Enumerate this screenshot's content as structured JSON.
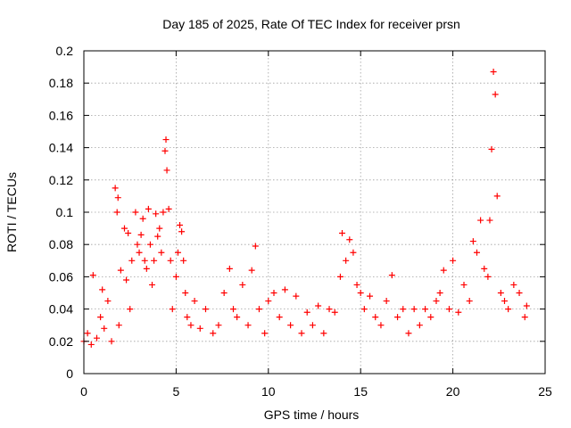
{
  "chart_data": {
    "type": "scatter",
    "title": "Day 185 of 2025, Rate Of TEC Index for receiver prsn",
    "xlabel": "GPS time / hours",
    "ylabel": "ROTI / TECUs",
    "xlim": [
      0,
      25
    ],
    "ylim": [
      0,
      0.2
    ],
    "x_ticks": [
      0,
      5,
      10,
      15,
      20,
      25
    ],
    "y_ticks": [
      0,
      0.02,
      0.04,
      0.06,
      0.08,
      0.1,
      0.12,
      0.14,
      0.16,
      0.18,
      0.2
    ],
    "x_tick_labels": [
      "0",
      "5",
      "10",
      "15",
      "20",
      "25"
    ],
    "y_tick_labels": [
      "0",
      "0.02",
      "0.04",
      "0.06",
      "0.08",
      "0.1",
      "0.12",
      "0.14",
      "0.16",
      "0.18",
      "0.2"
    ],
    "grid": true,
    "marker": "+",
    "color": "#ff0000",
    "series": [
      {
        "name": "ROTI",
        "x": [
          0.0,
          0.2,
          0.4,
          0.5,
          0.7,
          0.9,
          1.0,
          1.1,
          1.3,
          1.5,
          1.7,
          1.8,
          1.85,
          1.9,
          2.0,
          2.2,
          2.3,
          2.4,
          2.5,
          2.6,
          2.8,
          2.9,
          3.0,
          3.1,
          3.2,
          3.3,
          3.4,
          3.5,
          3.6,
          3.7,
          3.8,
          3.9,
          4.0,
          4.1,
          4.2,
          4.3,
          4.4,
          4.45,
          4.5,
          4.6,
          4.7,
          4.8,
          5.0,
          5.1,
          5.2,
          5.3,
          5.4,
          5.5,
          5.6,
          5.8,
          6.0,
          6.3,
          6.6,
          7.0,
          7.3,
          7.6,
          7.9,
          8.1,
          8.3,
          8.6,
          8.9,
          9.1,
          9.3,
          9.5,
          9.8,
          10.0,
          10.3,
          10.6,
          10.9,
          11.2,
          11.5,
          11.8,
          12.1,
          12.4,
          12.7,
          13.0,
          13.3,
          13.6,
          13.9,
          14.0,
          14.2,
          14.4,
          14.6,
          14.8,
          15.0,
          15.2,
          15.5,
          15.8,
          16.1,
          16.4,
          16.7,
          17.0,
          17.3,
          17.6,
          17.9,
          18.2,
          18.5,
          18.8,
          19.1,
          19.3,
          19.5,
          19.8,
          20.0,
          20.3,
          20.6,
          20.9,
          21.1,
          21.3,
          21.5,
          21.7,
          21.9,
          22.0,
          22.1,
          22.2,
          22.3,
          22.4,
          22.6,
          22.8,
          23.0,
          23.3,
          23.6,
          23.9,
          24.0
        ],
        "y": [
          0.02,
          0.025,
          0.018,
          0.061,
          0.022,
          0.035,
          0.052,
          0.028,
          0.045,
          0.02,
          0.115,
          0.1,
          0.109,
          0.03,
          0.064,
          0.09,
          0.058,
          0.087,
          0.04,
          0.07,
          0.1,
          0.08,
          0.075,
          0.086,
          0.096,
          0.07,
          0.065,
          0.102,
          0.08,
          0.055,
          0.07,
          0.099,
          0.085,
          0.09,
          0.075,
          0.1,
          0.138,
          0.145,
          0.126,
          0.102,
          0.07,
          0.04,
          0.06,
          0.075,
          0.092,
          0.088,
          0.07,
          0.05,
          0.035,
          0.03,
          0.045,
          0.028,
          0.04,
          0.025,
          0.03,
          0.05,
          0.065,
          0.04,
          0.035,
          0.055,
          0.03,
          0.064,
          0.079,
          0.04,
          0.025,
          0.045,
          0.05,
          0.035,
          0.052,
          0.03,
          0.048,
          0.025,
          0.038,
          0.03,
          0.042,
          0.025,
          0.04,
          0.038,
          0.06,
          0.087,
          0.07,
          0.083,
          0.075,
          0.055,
          0.05,
          0.04,
          0.048,
          0.035,
          0.03,
          0.045,
          0.061,
          0.035,
          0.04,
          0.025,
          0.04,
          0.03,
          0.04,
          0.035,
          0.045,
          0.05,
          0.064,
          0.04,
          0.07,
          0.038,
          0.055,
          0.045,
          0.082,
          0.075,
          0.095,
          0.065,
          0.06,
          0.095,
          0.139,
          0.187,
          0.173,
          0.11,
          0.05,
          0.045,
          0.04,
          0.055,
          0.05,
          0.035,
          0.042
        ]
      }
    ]
  }
}
